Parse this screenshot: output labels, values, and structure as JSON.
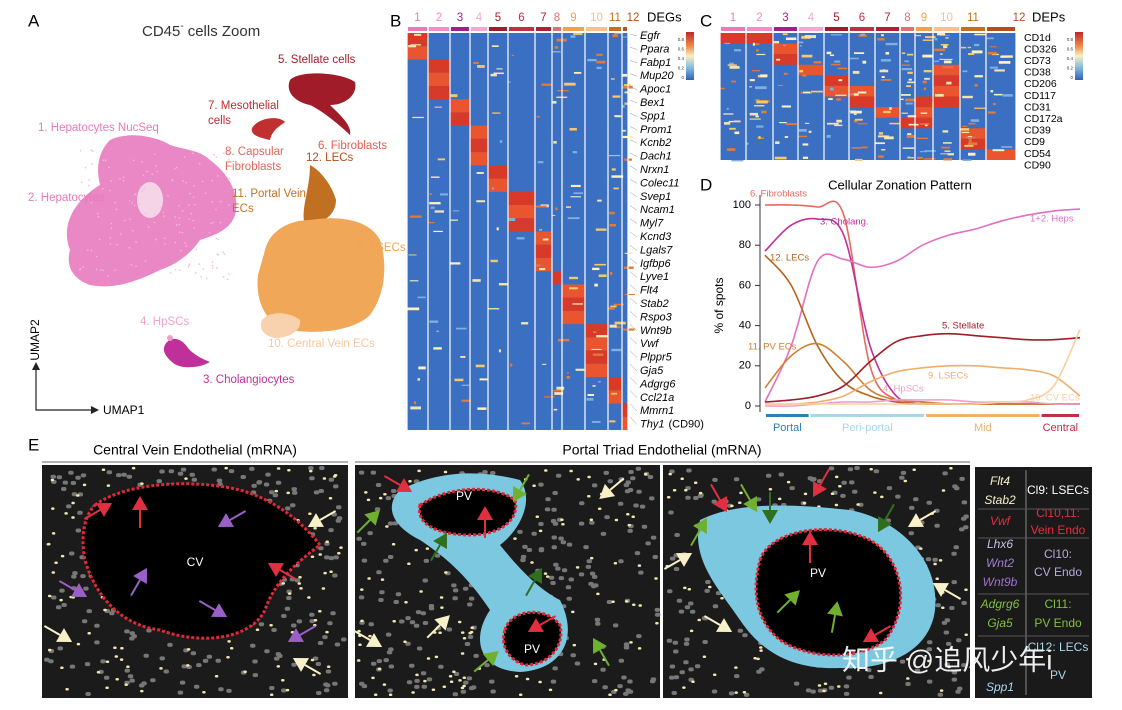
{
  "panel_a": {
    "label": "A",
    "title": {
      "main": "CD45",
      "sup": "-",
      "rest": "cells Zoom"
    },
    "axis_x": "UMAP1",
    "axis_y": "UMAP2",
    "clusters": [
      {
        "lines": [
          "1. Hepatocytes NucSeq"
        ],
        "color": "#e77ab8"
      },
      {
        "lines": [
          "2. Hepatocytes"
        ],
        "color": "#e77ab8"
      },
      {
        "lines": [
          "5. Stellate cells"
        ],
        "color": "#a01c28"
      },
      {
        "lines": [
          "7. Mesothelial",
          "cells"
        ],
        "color": "#c42a2e"
      },
      {
        "lines": [
          "6. Fibroblasts"
        ],
        "color": "#e0604f"
      },
      {
        "lines": [
          "8. Capsular",
          "Fibroblasts"
        ],
        "color": "#e0665a"
      },
      {
        "lines": [
          "12. LECs"
        ],
        "color": "#b04e1c"
      },
      {
        "lines": [
          "11. Portal Vein",
          "ECs"
        ],
        "color": "#c27222"
      },
      {
        "lines": [
          "9. LSECs"
        ],
        "color": "#f0a452"
      },
      {
        "lines": [
          "4. HpSCs"
        ],
        "color": "#f2a2cc"
      },
      {
        "lines": [
          "10. Central Vein ECs"
        ],
        "color": "#f6c8a0"
      },
      {
        "lines": [
          "3. Cholangiocytes"
        ],
        "color": "#c0309a"
      }
    ]
  },
  "panel_b": {
    "label": "B",
    "header": "DEGs",
    "clusters": [
      {
        "label": "1",
        "color": "#e77ab8"
      },
      {
        "label": "2",
        "color": "#f08cc8"
      },
      {
        "label": "3",
        "color": "#a0208a"
      },
      {
        "label": "4",
        "color": "#f2a8d0"
      },
      {
        "label": "5",
        "color": "#a01c28"
      },
      {
        "label": "6",
        "color": "#c03040"
      },
      {
        "label": "7",
        "color": "#b02030"
      },
      {
        "label": "8",
        "color": "#e07070"
      },
      {
        "label": "9",
        "color": "#f0a050"
      },
      {
        "label": "10",
        "color": "#f8c090"
      },
      {
        "label": "11",
        "color": "#c07020"
      },
      {
        "label": "12",
        "color": "#b05020"
      }
    ],
    "genes": [
      "Egfr",
      "Ppara",
      "Fabp1",
      "Mup20",
      "Apoc1",
      "Bex1",
      "Spp1",
      "Prom1",
      "Kcnb2",
      "Dach1",
      "Nrxn1",
      "Colec11",
      "Svep1",
      "Ncam1",
      "Myl7",
      "Kcnd3",
      "Lgals7",
      "Igfbp6",
      "Lyve1",
      "Flt4",
      "Stab2",
      "Rspo3",
      "Wnt9b",
      "Vwf",
      "Plppr5",
      "Gja5",
      "Adgrg6",
      "Ccl21a",
      "Mmrn1",
      "Thy1"
    ],
    "gene_note": "(CD90)",
    "colorbar": [
      "0.8",
      "0.6",
      "0.4",
      "0.2",
      "0"
    ]
  },
  "panel_c": {
    "label": "C",
    "header": "DEPs",
    "clusters": [
      "1",
      "2",
      "3",
      "4",
      "5",
      "6",
      "7",
      "8",
      "9",
      "10",
      "11",
      "12"
    ],
    "proteins": [
      "CD1d",
      "CD326",
      "CD73",
      "CD38",
      "CD206",
      "CD117",
      "CD31",
      "CD172a",
      "CD39",
      "CD9",
      "CD54",
      "CD90"
    ],
    "colorbar": [
      "0.8",
      "0.6",
      "0.4",
      "0.2",
      "0"
    ]
  },
  "chart_data": {
    "type": "line",
    "label": "D",
    "title": "Cellular Zonation Pattern",
    "y_label": "% of spots",
    "x": [
      0,
      1,
      2,
      3,
      4,
      5,
      6,
      7,
      8,
      9,
      10,
      11,
      12
    ],
    "xlim": [
      0,
      12
    ],
    "ylim": [
      0,
      100
    ],
    "yticks": [
      0,
      20,
      40,
      60,
      80,
      100
    ],
    "zones": [
      {
        "name": "Portal",
        "span": [
          0,
          1.7
        ],
        "color": "#2f7fb0"
      },
      {
        "name": "Peri-portal",
        "span": [
          1.7,
          6.1
        ],
        "color": "#a6d8e8"
      },
      {
        "name": "Mid",
        "span": [
          6.1,
          10.5
        ],
        "color": "#f0b070"
      },
      {
        "name": "Central",
        "span": [
          10.5,
          12
        ],
        "color": "#c03040"
      }
    ],
    "series": [
      {
        "name": "6. Fibroblasts",
        "color": "#e26a60",
        "values": [
          100,
          100,
          99,
          95,
          20,
          3,
          1,
          1,
          1,
          1,
          1,
          1,
          1
        ]
      },
      {
        "name": "3. Cholang.",
        "color": "#c0309a",
        "values": [
          77,
          90,
          93,
          85,
          30,
          5,
          2,
          1,
          1,
          1,
          1,
          1,
          1
        ]
      },
      {
        "name": "1+2. Heps",
        "color": "#e070c0",
        "values": [
          2,
          30,
          72,
          73,
          69,
          72,
          80,
          85,
          88,
          92,
          95,
          97,
          98
        ]
      },
      {
        "name": "12. LECs",
        "color": "#b5641c",
        "values": [
          75,
          60,
          30,
          12,
          5,
          2,
          1,
          1,
          1,
          1,
          1,
          1,
          1
        ]
      },
      {
        "name": "11. PV ECs",
        "color": "#d08030",
        "values": [
          9,
          25,
          31,
          22,
          8,
          3,
          2,
          1,
          1,
          1,
          1,
          1,
          1
        ]
      },
      {
        "name": "5. Stellate",
        "color": "#a01c28",
        "values": [
          2,
          3,
          5,
          10,
          22,
          32,
          35,
          36,
          35,
          34,
          33,
          33,
          34
        ]
      },
      {
        "name": "9. LSECs",
        "color": "#f0ae6c",
        "values": [
          1,
          1,
          2,
          5,
          12,
          17,
          19,
          20,
          20,
          19,
          18,
          15,
          5
        ]
      },
      {
        "name": "4. HpSCs",
        "color": "#f0a0c8",
        "values": [
          0,
          0,
          1,
          2,
          2,
          3,
          3,
          3,
          2,
          2,
          2,
          1,
          1
        ]
      },
      {
        "name": "10. CV ECs",
        "color": "#f8cfa0",
        "values": [
          1,
          1,
          1,
          1,
          1,
          1,
          1,
          1,
          1,
          2,
          3,
          10,
          38
        ]
      }
    ]
  },
  "panel_e": {
    "label": "E",
    "title_cv": "Central Vein Endothelial (mRNA)",
    "title_pt": "Portal Triad Endothelial (mRNA)",
    "image_labels": [
      "CV",
      "PV",
      "PV",
      "PV"
    ],
    "legend": [
      {
        "genes": [
          "Flt4",
          "Stab2"
        ],
        "gene_colors": [
          "#f8f0c8",
          "#f8f0c8"
        ],
        "lines": [
          "Cl9: LSECs"
        ],
        "color": "#ffffff"
      },
      {
        "genes": [
          "Vwf"
        ],
        "gene_colors": [
          "#e03040"
        ],
        "lines": [
          "Cl10,11:",
          "Vein Endo"
        ],
        "color": "#e03040"
      },
      {
        "genes": [
          "Lhx6",
          "Wnt2",
          "Wnt9b"
        ],
        "gene_colors": [
          "#c8c0e8",
          "#a080d0",
          "#a070d0"
        ],
        "lines": [
          "Cl10:",
          "CV Endo"
        ],
        "color": "#b8a8e0"
      },
      {
        "genes": [
          "Adgrg6",
          "Gja5"
        ],
        "gene_colors": [
          "#80c040",
          "#80c040"
        ],
        "lines": [
          "Cl11:",
          "PV Endo"
        ],
        "color": "#80c040"
      },
      {
        "genes": [
          "Spp1"
        ],
        "gene_colors": [
          "#a8d8ec"
        ],
        "lines": [
          "Cl12: LECs",
          "PV"
        ],
        "color": "#a8d8ec"
      }
    ]
  },
  "watermark": "知乎 @追风少年i"
}
